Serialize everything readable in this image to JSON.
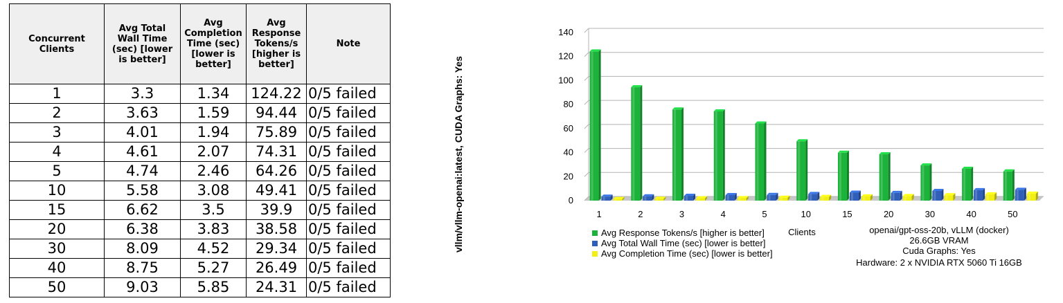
{
  "table": {
    "headers": [
      "Concurrent Clients",
      "Avg Total Wall Time (sec) [lower is better]",
      "Avg Completion Time (sec) [lower is better]",
      "Avg Response Tokens/s [higher is better]",
      "Note"
    ],
    "header_lines": [
      [
        "Concurrent",
        "Clients"
      ],
      [
        "Avg Total",
        "Wall Time",
        "(sec) [lower",
        "is better]"
      ],
      [
        "Avg",
        "Completion",
        "Time (sec)",
        "[lower is",
        "better]"
      ],
      [
        "Avg",
        "Response",
        "Tokens/s",
        "[higher is",
        "better]"
      ],
      [
        "Note"
      ]
    ],
    "rows": [
      [
        "1",
        "3.3",
        "1.34",
        "124.22",
        "0/5 failed"
      ],
      [
        "2",
        "3.63",
        "1.59",
        "94.44",
        "0/5 failed"
      ],
      [
        "3",
        "4.01",
        "1.94",
        "75.89",
        "0/5 failed"
      ],
      [
        "4",
        "4.61",
        "2.07",
        "74.31",
        "0/5 failed"
      ],
      [
        "5",
        "4.74",
        "2.46",
        "64.26",
        "0/5 failed"
      ],
      [
        "10",
        "5.58",
        "3.08",
        "49.41",
        "0/5 failed"
      ],
      [
        "15",
        "6.62",
        "3.5",
        "39.9",
        "0/5 failed"
      ],
      [
        "20",
        "6.38",
        "3.83",
        "38.58",
        "0/5 failed"
      ],
      [
        "30",
        "8.09",
        "4.52",
        "29.34",
        "0/5 failed"
      ],
      [
        "40",
        "8.75",
        "5.27",
        "26.49",
        "0/5 failed"
      ],
      [
        "50",
        "9.03",
        "5.85",
        "24.31",
        "0/5 failed"
      ]
    ]
  },
  "side_caption": "vllm/vllm-openai:latest, CUDA Graphs: Yes",
  "chart_data": {
    "type": "bar",
    "title": "",
    "xlabel": "Clients",
    "ylabel": "",
    "categories": [
      "1",
      "2",
      "3",
      "4",
      "5",
      "10",
      "15",
      "20",
      "30",
      "40",
      "50"
    ],
    "ylim": [
      0,
      140
    ],
    "yticks": [
      0,
      20,
      40,
      60,
      80,
      100,
      120,
      140
    ],
    "grid": true,
    "legend_position": "bottom-left",
    "series": [
      {
        "name": "Avg Response Tokens/s [higher is better]",
        "color": "#1bb33a",
        "values": [
          124.22,
          94.44,
          75.89,
          74.31,
          64.26,
          49.41,
          39.9,
          38.58,
          29.34,
          26.49,
          24.31
        ]
      },
      {
        "name": "Avg Total Wall Time (sec) [lower is better]",
        "color": "#2f5fb8",
        "values": [
          3.3,
          3.63,
          4.01,
          4.61,
          4.74,
          5.58,
          6.62,
          6.38,
          8.09,
          8.75,
          9.03
        ]
      },
      {
        "name": "Avg Completion Time (sec) [lower is better]",
        "color": "#f2ef15",
        "values": [
          1.34,
          1.59,
          1.94,
          2.07,
          2.46,
          3.08,
          3.5,
          3.83,
          4.52,
          5.27,
          5.85
        ]
      }
    ],
    "info_lines": [
      "openai/gpt-oss-20b, vLLM (docker)",
      "26.6GB VRAM",
      "Cuda Graphs: Yes",
      "Hardware: 2 x NVIDIA RTX 5060 Ti 16GB"
    ]
  }
}
